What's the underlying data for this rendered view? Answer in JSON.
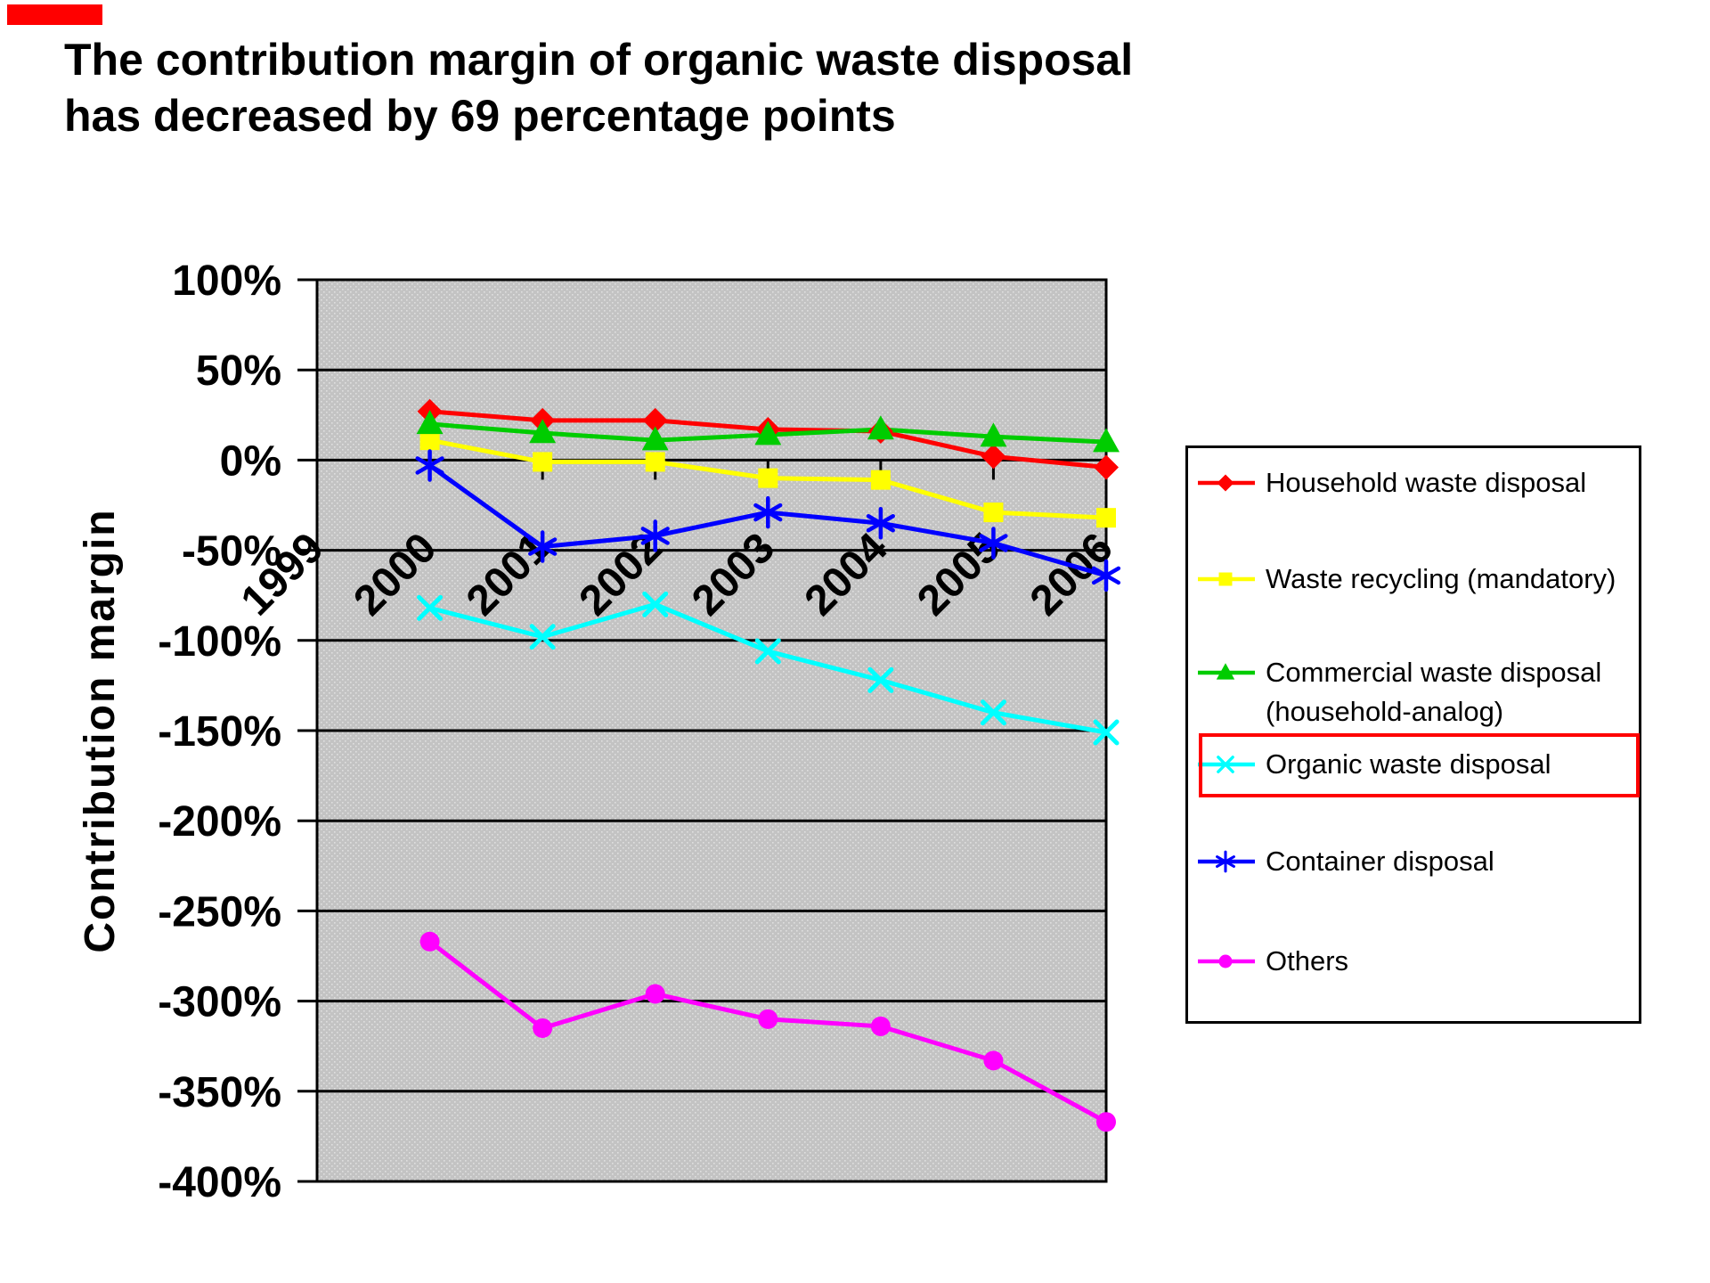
{
  "slide": {
    "background": "#FFFFFF"
  },
  "accent_bar": {
    "color": "#FF0000"
  },
  "title": {
    "line1": "The contribution margin of organic waste disposal",
    "line2": "has decreased by 69 percentage points"
  },
  "chart_data": {
    "type": "line",
    "title": "",
    "xlabel": "",
    "ylabel": "Contribution margin",
    "ylim": [
      -400,
      100
    ],
    "grid": "horizontal gridlines every 50 percentage points",
    "plot_background": "#C3C3C3",
    "legend_position": "right",
    "categories": [
      "1999",
      "2000",
      "2001",
      "2002",
      "2003",
      "2004",
      "2005",
      "2006"
    ],
    "y_ticks": [
      "100%",
      "50%",
      "0%",
      "-50%",
      "-100%",
      "-150%",
      "-200%",
      "-250%",
      "-300%",
      "-350%",
      "-400%"
    ],
    "series": [
      {
        "name": "Household waste disposal",
        "legend_lines": [
          "Household waste disposal"
        ],
        "color": "#FF0000",
        "marker": "diamond",
        "values": [
          null,
          27,
          22,
          22,
          17,
          16,
          2,
          -4
        ],
        "highlighted": false
      },
      {
        "name": "Waste recycling (mandatory)",
        "legend_lines": [
          "Waste recycling (mandatory)"
        ],
        "color": "#FFFF00",
        "marker": "square",
        "values": [
          null,
          11,
          -1,
          -1,
          -10,
          -11,
          -29,
          -32
        ],
        "highlighted": false
      },
      {
        "name": "Commercial waste disposal (household-analog)",
        "legend_lines": [
          "Commercial waste disposal",
          "(household-analog)"
        ],
        "color": "#00CC00",
        "marker": "triangle",
        "values": [
          null,
          20,
          15,
          11,
          14,
          17,
          13,
          10
        ],
        "highlighted": false
      },
      {
        "name": "Organic waste disposal",
        "legend_lines": [
          "Organic waste disposal"
        ],
        "color": "#00FFFF",
        "marker": "x",
        "values": [
          null,
          -82,
          -98,
          -80,
          -106,
          -122,
          -140,
          -151
        ],
        "highlighted": true
      },
      {
        "name": "Container disposal",
        "legend_lines": [
          "Container disposal"
        ],
        "color": "#0000FF",
        "marker": "asterisk",
        "values": [
          null,
          -3,
          -48,
          -42,
          -29,
          -35,
          -46,
          -64
        ],
        "highlighted": false
      },
      {
        "name": "Others",
        "legend_lines": [
          "Others"
        ],
        "color": "#FF00FF",
        "marker": "circle",
        "values": [
          null,
          -267,
          -315,
          -296,
          -310,
          -314,
          -333,
          -367
        ],
        "highlighted": false
      }
    ],
    "highlight_box_color": "#FF0000"
  }
}
